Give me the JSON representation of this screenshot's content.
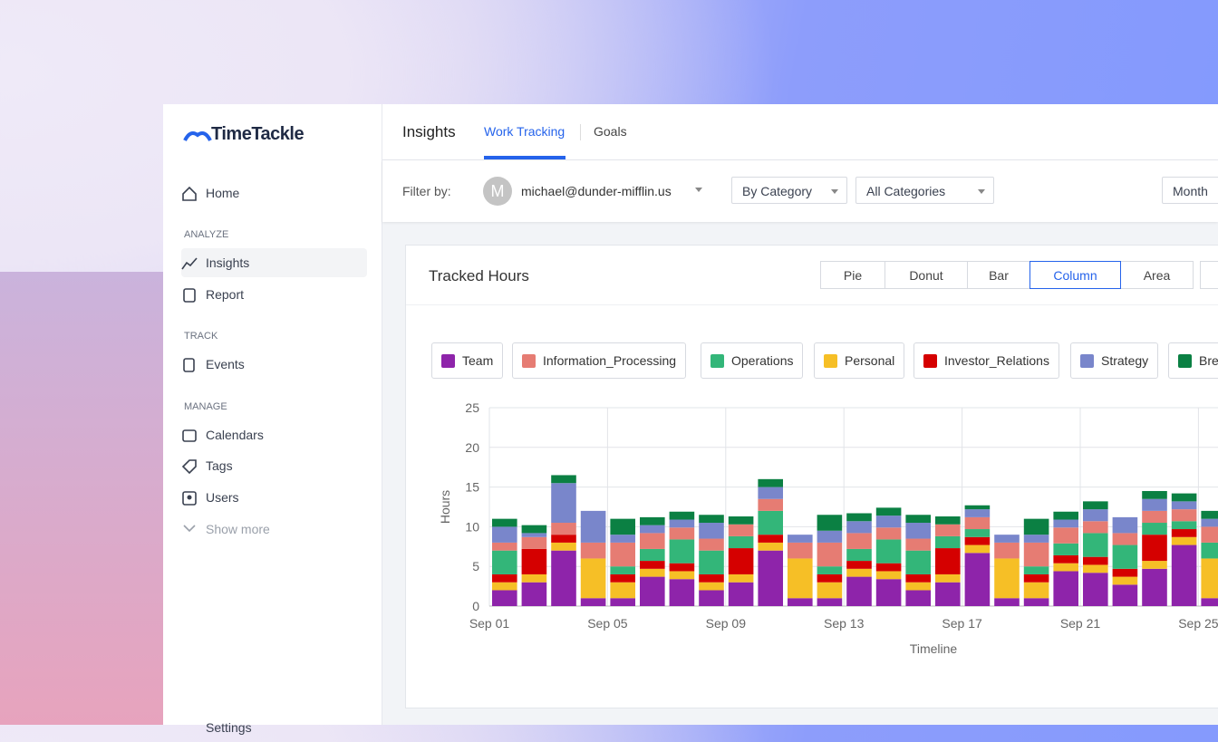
{
  "brand": "TimeTackle",
  "sidebar": {
    "home": "Home",
    "sections": [
      {
        "title": "ANALYZE",
        "items": [
          "Insights",
          "Report"
        ]
      },
      {
        "title": "TRACK",
        "items": [
          "Events"
        ]
      },
      {
        "title": "MANAGE",
        "items": [
          "Calendars",
          "Tags",
          "Users"
        ]
      }
    ],
    "show_more": "Show more",
    "settings": "Settings"
  },
  "topnav": {
    "title": "Insights",
    "tabs": [
      "Work Tracking",
      "Goals"
    ]
  },
  "filter": {
    "label": "Filter by:",
    "avatar": "M",
    "user": "michael@dunder-mifflin.us",
    "group": "By Category",
    "categories": "All Categories",
    "period": "Month"
  },
  "card": {
    "title": "Tracked Hours",
    "chart_types": [
      "Pie",
      "Donut",
      "Bar",
      "Column",
      "Area"
    ]
  },
  "chart_data": {
    "type": "stacked_column",
    "y_label": "Hours",
    "x_label": "Timeline",
    "categories": [
      "Sep 01",
      null,
      null,
      null,
      "Sep 05",
      null,
      null,
      null,
      "Sep 09",
      null,
      null,
      null,
      "Sep 13",
      null,
      null,
      null,
      "Sep 17",
      null,
      null,
      null,
      "Sep 21",
      null,
      null,
      null,
      "Sep 25"
    ],
    "series": [
      {
        "name": "Team",
        "color": "#8e24aa",
        "values": [
          2,
          3,
          7,
          1,
          1,
          3.7,
          3.4,
          2,
          3,
          7,
          1,
          1,
          3.7,
          3.4,
          2,
          3,
          6.7,
          1,
          1,
          4.4,
          4.2,
          2.7,
          4.7,
          7.7,
          1
        ]
      },
      {
        "name": "Information_Processing",
        "color": "#e67c73",
        "values": [
          1,
          1.5,
          1.5,
          2,
          3,
          2,
          1.5,
          1.5,
          1.5,
          1.5,
          2,
          3,
          2,
          1.5,
          1.5,
          1.5,
          1.5,
          2,
          3,
          2,
          1.5,
          1.5,
          1.5,
          1.5,
          2
        ]
      },
      {
        "name": "Operations",
        "color": "#33b679",
        "values": [
          3,
          0,
          0,
          0,
          1,
          1.5,
          3,
          3,
          1.5,
          3,
          0,
          1,
          1.5,
          3,
          3,
          1.5,
          1,
          0,
          1,
          1.5,
          3,
          3,
          1.5,
          1,
          2
        ]
      },
      {
        "name": "Personal",
        "color": "#f6bf26",
        "values": [
          1,
          1,
          1,
          5,
          2,
          1,
          1,
          1,
          1,
          1,
          5,
          2,
          1,
          1,
          1,
          1,
          1,
          5,
          2,
          1,
          1,
          1,
          1,
          1,
          5
        ]
      },
      {
        "name": "Investor_Relations",
        "color": "#d50000",
        "values": [
          1,
          3.2,
          1,
          0,
          1,
          1,
          1,
          1,
          3.3,
          1,
          0,
          1,
          1,
          1,
          1,
          3.3,
          1,
          0,
          1,
          1,
          1,
          1,
          3.3,
          1,
          0
        ]
      },
      {
        "name": "Strategy",
        "color": "#7986cb",
        "values": [
          2,
          0.5,
          5,
          4,
          1,
          1,
          1,
          2,
          0,
          1.5,
          1,
          1.5,
          1.5,
          1.5,
          2,
          0,
          1,
          1,
          1,
          1,
          1.5,
          2,
          1.5,
          1,
          1
        ]
      },
      {
        "name": "Break",
        "color": "#0b8043",
        "values": [
          1,
          1,
          1,
          0,
          2,
          1,
          1,
          1,
          1,
          1,
          0,
          2,
          1,
          1,
          1,
          1,
          0.5,
          0,
          2,
          1,
          1,
          0,
          1,
          1,
          1
        ]
      }
    ],
    "ylim": [
      0,
      25
    ],
    "yticks": [
      0,
      5,
      10,
      15,
      20,
      25
    ],
    "grid": true
  }
}
